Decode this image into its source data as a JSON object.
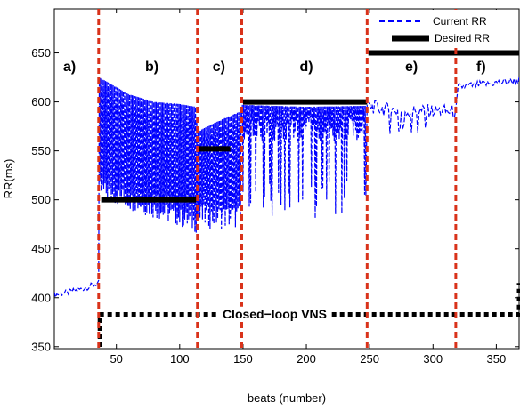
{
  "chart_data": {
    "type": "line",
    "xlabel": "beats (number)",
    "ylabel": "RR(ms)",
    "xlim": [
      1,
      368
    ],
    "ylim": [
      348,
      695
    ],
    "xticks": [
      50,
      100,
      150,
      200,
      250,
      300,
      350
    ],
    "yticks": [
      350,
      400,
      450,
      500,
      550,
      600,
      650
    ],
    "grid": false,
    "legend_position": "top-right",
    "legend": [
      {
        "label": "Current RR",
        "style": "dashed",
        "color": "#0000ff"
      },
      {
        "label": "Desired RR",
        "style": "thick-solid",
        "color": "#000000"
      }
    ],
    "phase_boundaries": [
      36,
      114,
      149,
      248,
      318
    ],
    "phase_labels": [
      {
        "label": "a)",
        "x": 13
      },
      {
        "label": "b)",
        "x": 78
      },
      {
        "label": "c)",
        "x": 131
      },
      {
        "label": "d)",
        "x": 200
      },
      {
        "label": "e)",
        "x": 283
      },
      {
        "label": "f)",
        "x": 338
      }
    ],
    "desired_rr": [
      {
        "x0": 38,
        "x1": 113,
        "y": 500
      },
      {
        "x0": 115,
        "x1": 140,
        "y": 552
      },
      {
        "x0": 150,
        "x1": 248,
        "y": 600
      },
      {
        "x0": 249,
        "x1": 368,
        "y": 650
      }
    ],
    "current_rr_outline": [
      {
        "x": 1,
        "y": 403
      },
      {
        "x": 10,
        "y": 405
      },
      {
        "x": 20,
        "y": 408
      },
      {
        "x": 30,
        "y": 412
      },
      {
        "x": 36,
        "y": 415
      },
      {
        "x": 37,
        "y": 625
      },
      {
        "x": 60,
        "y": 608
      },
      {
        "x": 80,
        "y": 600
      },
      {
        "x": 100,
        "y": 598
      },
      {
        "x": 113,
        "y": 595
      },
      {
        "x": 115,
        "y": 570
      },
      {
        "x": 135,
        "y": 583
      },
      {
        "x": 148,
        "y": 590
      },
      {
        "x": 150,
        "y": 597
      },
      {
        "x": 200,
        "y": 595
      },
      {
        "x": 248,
        "y": 596
      },
      {
        "x": 260,
        "y": 593
      },
      {
        "x": 280,
        "y": 590
      },
      {
        "x": 300,
        "y": 591
      },
      {
        "x": 318,
        "y": 590
      },
      {
        "x": 320,
        "y": 615
      },
      {
        "x": 340,
        "y": 618
      },
      {
        "x": 368,
        "y": 622
      }
    ],
    "vns_on": [
      {
        "x0": 37,
        "x1": 368,
        "y": 383
      }
    ],
    "annotation": "Closed−loop VNS"
  }
}
